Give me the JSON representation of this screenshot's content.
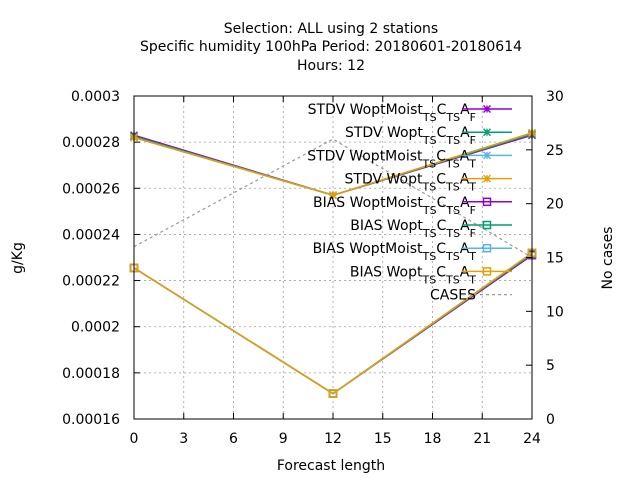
{
  "chart_data": {
    "type": "line",
    "title_lines": [
      "Selection: ALL using     2 stations",
      "Specific humidity 100hPa   Period: 20180601-20180614",
      "Hours:  12"
    ],
    "xlabel": "Forecast length",
    "ylabel": "g/Kg",
    "y2label": "No cases",
    "x": [
      0,
      12,
      24
    ],
    "xlim": [
      0,
      24
    ],
    "ylim": [
      0.00016,
      0.0003
    ],
    "y2lim": [
      0,
      30
    ],
    "xticks": [
      "0",
      "3",
      "6",
      "9",
      "12",
      "15",
      "18",
      "21",
      "24"
    ],
    "yticks": [
      "0.00016",
      "0.00018",
      "0.0002",
      "0.00022",
      "0.00024",
      "0.00026",
      "0.00028",
      "0.0003"
    ],
    "y2ticks": [
      "0",
      "5",
      "10",
      "15",
      "20",
      "25",
      "30"
    ],
    "grid": true,
    "legend_position": "top-right",
    "series": [
      {
        "name": "STDV WoptMoist",
        "sub1": "TS",
        "mid": "C",
        "sub2": "TS",
        "end": "A",
        "sub3": "F",
        "color": "#9400d3",
        "marker": "x",
        "values": [
          0.000283,
          0.000257,
          0.000283
        ],
        "axis": "y"
      },
      {
        "name": "STDV Wopt",
        "sub1": "TS",
        "mid": "C",
        "sub2": "TS",
        "end": "A",
        "sub3": "F",
        "color": "#009e73",
        "marker": "x",
        "values": [
          0.0002825,
          0.000257,
          0.0002835
        ],
        "axis": "y"
      },
      {
        "name": "STDV WoptMoist",
        "sub1": "TS",
        "mid": "C",
        "sub2": "TS",
        "end": "A",
        "sub3": "T",
        "color": "#56b4e9",
        "marker": "x",
        "values": [
          0.000282,
          0.000257,
          0.000284
        ],
        "axis": "y"
      },
      {
        "name": "STDV Wopt",
        "sub1": "TS",
        "mid": "C",
        "sub2": "TS",
        "end": "A",
        "sub3": "T",
        "color": "#e69f00",
        "marker": "x",
        "values": [
          0.000282,
          0.000257,
          0.000284
        ],
        "axis": "y"
      },
      {
        "name": "BIAS WoptMoist",
        "sub1": "TS",
        "mid": "C",
        "sub2": "TS",
        "end": "A",
        "sub3": "F",
        "color": "#9400d3",
        "marker": "square",
        "values": [
          0.0002255,
          0.000171,
          0.000231
        ],
        "axis": "y"
      },
      {
        "name": "BIAS Wopt",
        "sub1": "TS",
        "mid": "C",
        "sub2": "TS",
        "end": "A",
        "sub3": "F",
        "color": "#009e73",
        "marker": "square",
        "values": [
          0.0002255,
          0.000171,
          0.0002315
        ],
        "axis": "y"
      },
      {
        "name": "BIAS WoptMoist",
        "sub1": "TS",
        "mid": "C",
        "sub2": "TS",
        "end": "A",
        "sub3": "T",
        "color": "#56b4e9",
        "marker": "square",
        "values": [
          0.0002255,
          0.000171,
          0.000232
        ],
        "axis": "y"
      },
      {
        "name": "BIAS Wopt",
        "sub1": "TS",
        "mid": "C",
        "sub2": "TS",
        "end": "A",
        "sub3": "T",
        "color": "#e69f00",
        "marker": "square",
        "values": [
          0.0002255,
          0.000171,
          0.000232
        ],
        "axis": "y"
      },
      {
        "name": "CASES",
        "color": "#999999",
        "marker": "none",
        "dashed": true,
        "values": [
          16,
          26,
          15
        ],
        "axis": "y2"
      }
    ]
  }
}
